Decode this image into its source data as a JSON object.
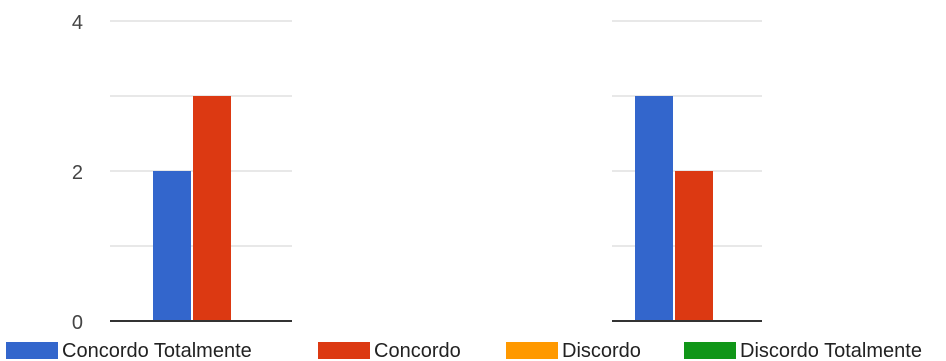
{
  "chart_data": {
    "type": "bar",
    "ylim": [
      0,
      4
    ],
    "yticks": [
      0,
      2,
      4
    ],
    "grid": true,
    "legend_position": "bottom",
    "panels": [
      {
        "series": [
          {
            "name": "Concordo Totalmente",
            "values": [
              2
            ],
            "color": "#3366cc"
          },
          {
            "name": "Concordo",
            "values": [
              3
            ],
            "color": "#dc3912"
          },
          {
            "name": "Discordo",
            "values": [
              0
            ],
            "color": "#ff9900"
          },
          {
            "name": "Discordo Totalmente",
            "values": [
              0
            ],
            "color": "#109618"
          }
        ]
      },
      {
        "series": [
          {
            "name": "Concordo Totalmente",
            "values": [
              3
            ],
            "color": "#3366cc"
          },
          {
            "name": "Concordo",
            "values": [
              2
            ],
            "color": "#dc3912"
          },
          {
            "name": "Discordo",
            "values": [
              0
            ],
            "color": "#ff9900"
          },
          {
            "name": "Discordo Totalmente",
            "values": [
              0
            ],
            "color": "#109618"
          }
        ]
      }
    ],
    "legend": [
      {
        "label": "Concordo Totalmente",
        "color": "#3366cc"
      },
      {
        "label": "Concordo",
        "color": "#dc3912"
      },
      {
        "label": "Discordo",
        "color": "#ff9900"
      },
      {
        "label": "Discordo Totalmente",
        "color": "#109618"
      }
    ]
  }
}
